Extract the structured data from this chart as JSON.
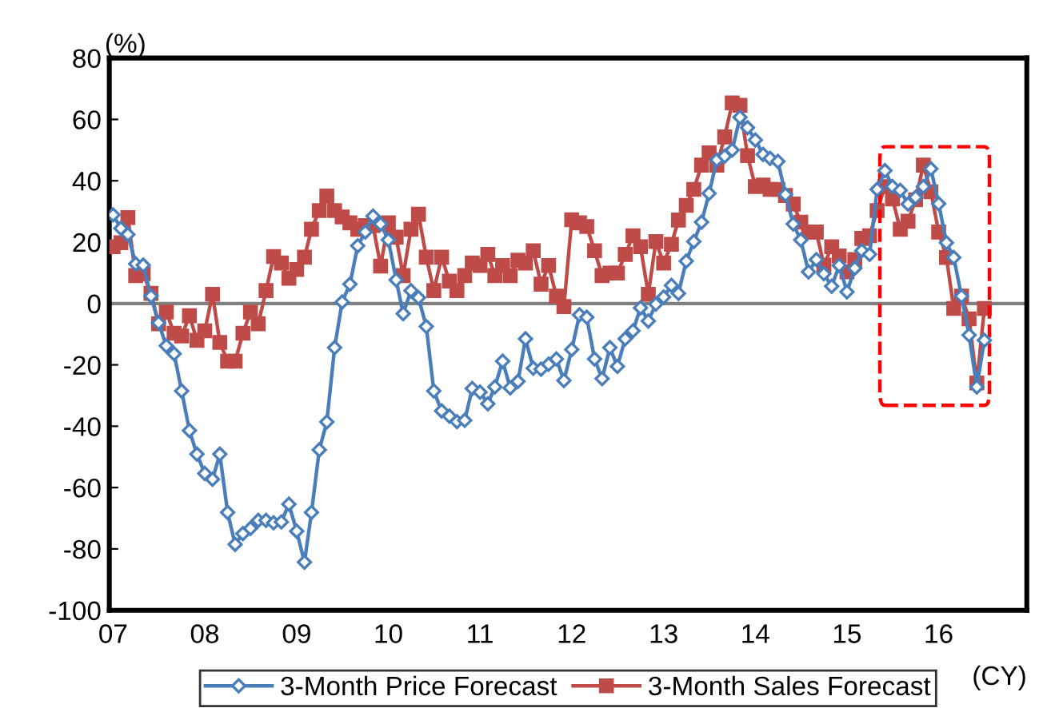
{
  "chart_data": {
    "type": "line",
    "xlabel": "(CY)",
    "ylabel": "(%)",
    "x": [
      "2007-01",
      "2007-02",
      "2007-03",
      "2007-04",
      "2007-05",
      "2007-06",
      "2007-07",
      "2007-08",
      "2007-09",
      "2007-10",
      "2007-11",
      "2007-12",
      "2008-01",
      "2008-02",
      "2008-03",
      "2008-04",
      "2008-05",
      "2008-06",
      "2008-07",
      "2008-08",
      "2008-09",
      "2008-10",
      "2008-11",
      "2008-12",
      "2009-01",
      "2009-02",
      "2009-03",
      "2009-04",
      "2009-05",
      "2009-06",
      "2009-07",
      "2009-08",
      "2009-09",
      "2009-10",
      "2009-11",
      "2009-12",
      "2010-01",
      "2010-02",
      "2010-03",
      "2010-04",
      "2010-05",
      "2010-06",
      "2010-07",
      "2010-08",
      "2010-09",
      "2010-10",
      "2010-11",
      "2010-12",
      "2011-01",
      "2011-02",
      "2011-03",
      "2011-04",
      "2011-05",
      "2011-06",
      "2011-07",
      "2011-08",
      "2011-09",
      "2011-10",
      "2011-11",
      "2011-12",
      "2012-01",
      "2012-02",
      "2012-03",
      "2012-04",
      "2012-05",
      "2012-06",
      "2012-07",
      "2012-08",
      "2012-09",
      "2012-10",
      "2012-11",
      "2012-12",
      "2013-01",
      "2013-02",
      "2013-03",
      "2013-04",
      "2013-05",
      "2013-06",
      "2013-07",
      "2013-08",
      "2013-09",
      "2013-10",
      "2013-11",
      "2013-12",
      "2014-01",
      "2014-02",
      "2014-03",
      "2014-04",
      "2014-05",
      "2014-06",
      "2014-07",
      "2014-08",
      "2014-09",
      "2014-10",
      "2014-11",
      "2014-12",
      "2015-01",
      "2015-02",
      "2015-03",
      "2015-04",
      "2015-05",
      "2015-06",
      "2015-07",
      "2015-08",
      "2015-09",
      "2015-10",
      "2015-11",
      "2015-12",
      "2016-01",
      "2016-02",
      "2016-03",
      "2016-04",
      "2016-05",
      "2016-06",
      "2016-07"
    ],
    "series": [
      {
        "name": "3-Month Price Forecast",
        "color": "#4a7ebb",
        "marker": "diamond",
        "values": [
          28.9,
          24.5,
          22.5,
          12.9,
          12.5,
          2.4,
          -6.3,
          -13.8,
          -16.4,
          -28.5,
          -41.4,
          -49.1,
          -55.4,
          -57.3,
          -49.1,
          -68.1,
          -78.5,
          -75.0,
          -73.3,
          -70.7,
          -70.7,
          -71.5,
          -71.2,
          -65.4,
          -74.2,
          -84.3,
          -68.1,
          -47.7,
          -38.6,
          -14.4,
          0.5,
          6.3,
          18.8,
          23.3,
          28.5,
          25.9,
          20.7,
          7.7,
          -3.3,
          4.2,
          1.9,
          -7.5,
          -28.5,
          -35.0,
          -36.7,
          -38.5,
          -38.1,
          -27.7,
          -28.9,
          -32.7,
          -27.2,
          -18.8,
          -27.5,
          -25.4,
          -11.5,
          -21.1,
          -21.4,
          -19.8,
          -18.1,
          -25.1,
          -15.0,
          -3.7,
          -4.5,
          -18.1,
          -24.5,
          -14.4,
          -20.5,
          -11.5,
          -8.9,
          -1.4,
          -5.7,
          -0.2,
          2.1,
          5.9,
          3.3,
          13.8,
          20.2,
          26.5,
          35.9,
          46.8,
          48.0,
          50.0,
          60.7,
          57.3,
          53.3,
          48.6,
          47.3,
          46.3,
          35.5,
          25.9,
          20.7,
          10.3,
          14.3,
          9.7,
          5.6,
          12.4,
          3.8,
          11.5,
          17.2,
          16.0,
          37.2,
          43.3,
          38.1,
          36.9,
          32.4,
          34.6,
          38.1,
          43.9,
          32.5,
          19.8,
          15.0,
          2.4,
          -10.3,
          -27.2,
          -12.0
        ]
      },
      {
        "name": "3-Month Sales Forecast",
        "color": "#be4b48",
        "marker": "square",
        "values": [
          18.5,
          19.8,
          28.0,
          9.1,
          9.7,
          3.3,
          -6.6,
          -2.8,
          -9.7,
          -10.6,
          -4.0,
          -12.0,
          -8.9,
          3.0,
          -12.7,
          -18.8,
          -18.8,
          -9.7,
          -2.8,
          -6.6,
          4.2,
          15.3,
          13.2,
          8.2,
          11.1,
          15.1,
          24.2,
          30.3,
          35.0,
          30.3,
          28.2,
          26.3,
          24.2,
          25.4,
          25.4,
          12.2,
          26.3,
          21.6,
          9.1,
          24.2,
          29.1,
          15.1,
          4.2,
          15.1,
          7.3,
          4.2,
          9.1,
          13.2,
          12.4,
          16.0,
          9.1,
          12.4,
          9.1,
          14.1,
          13.2,
          17.2,
          6.3,
          12.4,
          2.4,
          -1.0,
          27.3,
          26.3,
          25.1,
          17.2,
          9.1,
          9.9,
          9.9,
          16.0,
          22.1,
          18.5,
          3.0,
          20.2,
          13.2,
          19.3,
          27.2,
          32.0,
          37.2,
          45.1,
          49.1,
          45.1,
          54.3,
          65.4,
          64.6,
          48.2,
          38.1,
          38.6,
          37.2,
          37.2,
          35.2,
          32.4,
          26.5,
          23.3,
          23.3,
          12.5,
          18.5,
          15.5,
          10.3,
          14.3,
          21.2,
          22.1,
          30.3,
          38.1,
          34.1,
          24.2,
          26.8,
          33.8,
          45.1,
          36.4,
          23.3,
          15.0,
          -1.6,
          2.4,
          -5.0,
          -25.9,
          -1.6
        ]
      }
    ],
    "xlim": [
      "2006-12-17",
      "2016-12-17"
    ],
    "xticks": [
      {
        "value": "2007-01-01",
        "label": "07"
      },
      {
        "value": "2008-01-01",
        "label": "08"
      },
      {
        "value": "2009-01-01",
        "label": "09"
      },
      {
        "value": "2010-01-01",
        "label": "10"
      },
      {
        "value": "2011-01-01",
        "label": "11"
      },
      {
        "value": "2012-01-01",
        "label": "12"
      },
      {
        "value": "2013-01-01",
        "label": "13"
      },
      {
        "value": "2014-01-01",
        "label": "14"
      },
      {
        "value": "2015-01-01",
        "label": "15"
      },
      {
        "value": "2016-01-01",
        "label": "16"
      }
    ],
    "ylim": [
      -100,
      80
    ],
    "yticks": [
      -100,
      -80,
      -60,
      -40,
      -20,
      0,
      20,
      40,
      60,
      80
    ],
    "ref_lines": [
      {
        "axis": "y",
        "value": 0,
        "color": "#808080"
      }
    ],
    "grid": false,
    "legend": "bottom",
    "line_style": "solid"
  }
}
